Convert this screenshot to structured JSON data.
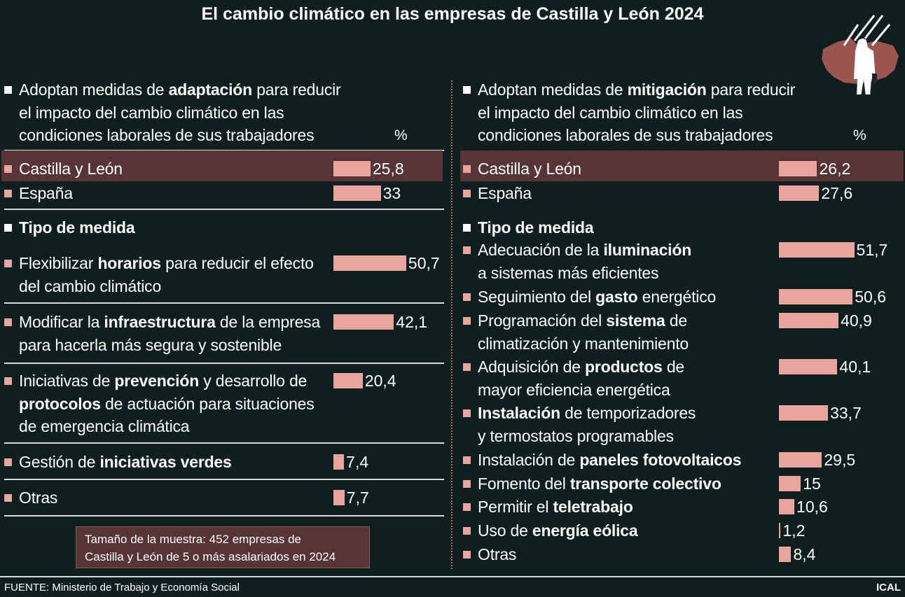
{
  "title": "El cambio climático en las empresas de Castilla y León 2024",
  "source": "FUENTE: Ministerio de Trabajo y Economía Social",
  "brand": "ICAL",
  "sample_note": [
    "Tamaño de la muestra: 452 empresas de",
    "Castilla y León de 5 o más asalariados en 2024"
  ],
  "colors": {
    "background": "#0f1f1e",
    "bar": "#e8a5a0",
    "highlight": "#573436"
  },
  "logo_icon": "man-in-rain-over-region-map-icon",
  "chart_data": [
    {
      "type": "bar",
      "orientation": "horizontal",
      "unit": "%",
      "heading": [
        [
          {
            "t": "Adoptan medidas de "
          },
          {
            "t": "adaptación",
            "b": true
          },
          {
            "t": " para reducir"
          }
        ],
        [
          {
            "t": "el impacto del cambio climático en las"
          }
        ],
        [
          {
            "t": "condiciones laborales de sus trabajadores"
          }
        ]
      ],
      "regions": [
        {
          "label": [
            [
              {
                "t": "Castilla y León"
              }
            ]
          ],
          "value": 25.8,
          "value_text": "25,8",
          "highlight": true
        },
        {
          "label": [
            [
              {
                "t": "España"
              }
            ]
          ],
          "value": 33,
          "value_text": "33"
        }
      ],
      "section_label": "Tipo de medida",
      "measures": [
        {
          "label": [
            [
              {
                "t": "Flexibilizar "
              },
              {
                "t": "horarios",
                "b": true
              },
              {
                "t": " para reducir el efecto"
              }
            ],
            [
              {
                "t": "del cambio climático"
              }
            ]
          ],
          "value": 50.7,
          "value_text": "50,7"
        },
        {
          "label": [
            [
              {
                "t": "Modificar la "
              },
              {
                "t": "infraestructura",
                "b": true
              },
              {
                "t": " de la empresa"
              }
            ],
            [
              {
                "t": "para hacerla más segura y sostenible"
              }
            ]
          ],
          "value": 42.1,
          "value_text": "42,1"
        },
        {
          "label": [
            [
              {
                "t": "Iniciativas de "
              },
              {
                "t": "prevención",
                "b": true
              },
              {
                "t": " y desarrollo de"
              }
            ],
            [
              {
                "t": "protocolos",
                "b": true
              },
              {
                "t": " de actuación para situaciones"
              }
            ],
            [
              {
                "t": "de emergencia climática"
              }
            ]
          ],
          "value": 20.4,
          "value_text": "20,4"
        },
        {
          "label": [
            [
              {
                "t": "Gestión de "
              },
              {
                "t": "iniciativas verdes",
                "b": true
              }
            ]
          ],
          "value": 7.4,
          "value_text": "7,4"
        },
        {
          "label": [
            [
              {
                "t": "Otras"
              }
            ]
          ],
          "value": 7.7,
          "value_text": "7,7"
        }
      ]
    },
    {
      "type": "bar",
      "orientation": "horizontal",
      "unit": "%",
      "heading": [
        [
          {
            "t": "Adoptan medidas de "
          },
          {
            "t": "mitigación",
            "b": true
          },
          {
            "t": " para reducir"
          }
        ],
        [
          {
            "t": "el impacto del cambio climático en las"
          }
        ],
        [
          {
            "t": "condiciones laborales de sus trabajadores"
          }
        ]
      ],
      "regions": [
        {
          "label": [
            [
              {
                "t": "Castilla y León"
              }
            ]
          ],
          "value": 26.2,
          "value_text": "26,2",
          "highlight": true
        },
        {
          "label": [
            [
              {
                "t": "España"
              }
            ]
          ],
          "value": 27.6,
          "value_text": "27,6"
        }
      ],
      "section_label": "Tipo de medida",
      "measures": [
        {
          "label": [
            [
              {
                "t": "Adecuación de la "
              },
              {
                "t": "iluminación",
                "b": true
              }
            ],
            [
              {
                "t": "a sistemas más eficientes"
              }
            ]
          ],
          "value": 51.7,
          "value_text": "51,7"
        },
        {
          "label": [
            [
              {
                "t": "Seguimiento del "
              },
              {
                "t": "gasto",
                "b": true
              },
              {
                "t": " energético"
              }
            ]
          ],
          "value": 50.6,
          "value_text": "50,6"
        },
        {
          "label": [
            [
              {
                "t": "Programación del "
              },
              {
                "t": "sistema",
                "b": true
              },
              {
                "t": " de"
              }
            ],
            [
              {
                "t": "climatización y mantenimiento"
              }
            ]
          ],
          "value": 40.9,
          "value_text": "40,9"
        },
        {
          "label": [
            [
              {
                "t": "Adquisición de "
              },
              {
                "t": "productos",
                "b": true
              },
              {
                "t": " de"
              }
            ],
            [
              {
                "t": "mayor eficiencia energética"
              }
            ]
          ],
          "value": 40.1,
          "value_text": "40,1"
        },
        {
          "label": [
            [
              {
                "t": "Instalación",
                "b": true
              },
              {
                "t": " de temporizadores"
              }
            ],
            [
              {
                "t": "y termostatos programables"
              }
            ]
          ],
          "value": 33.7,
          "value_text": "33,7"
        },
        {
          "label": [
            [
              {
                "t": "Instalación de "
              },
              {
                "t": "paneles fotovoltaicos",
                "b": true
              }
            ]
          ],
          "value": 29.5,
          "value_text": "29,5"
        },
        {
          "label": [
            [
              {
                "t": "Fomento del "
              },
              {
                "t": "transporte colectivo",
                "b": true
              }
            ]
          ],
          "value": 15,
          "value_text": "15"
        },
        {
          "label": [
            [
              {
                "t": "Permitir el "
              },
              {
                "t": "teletrabajo",
                "b": true
              }
            ]
          ],
          "value": 10.6,
          "value_text": "10,6"
        },
        {
          "label": [
            [
              {
                "t": "Uso de "
              },
              {
                "t": "energía eólica",
                "b": true
              }
            ]
          ],
          "value": 1.2,
          "value_text": "1,2"
        },
        {
          "label": [
            [
              {
                "t": "Otras"
              }
            ]
          ],
          "value": 8.4,
          "value_text": "8,4"
        }
      ]
    }
  ]
}
